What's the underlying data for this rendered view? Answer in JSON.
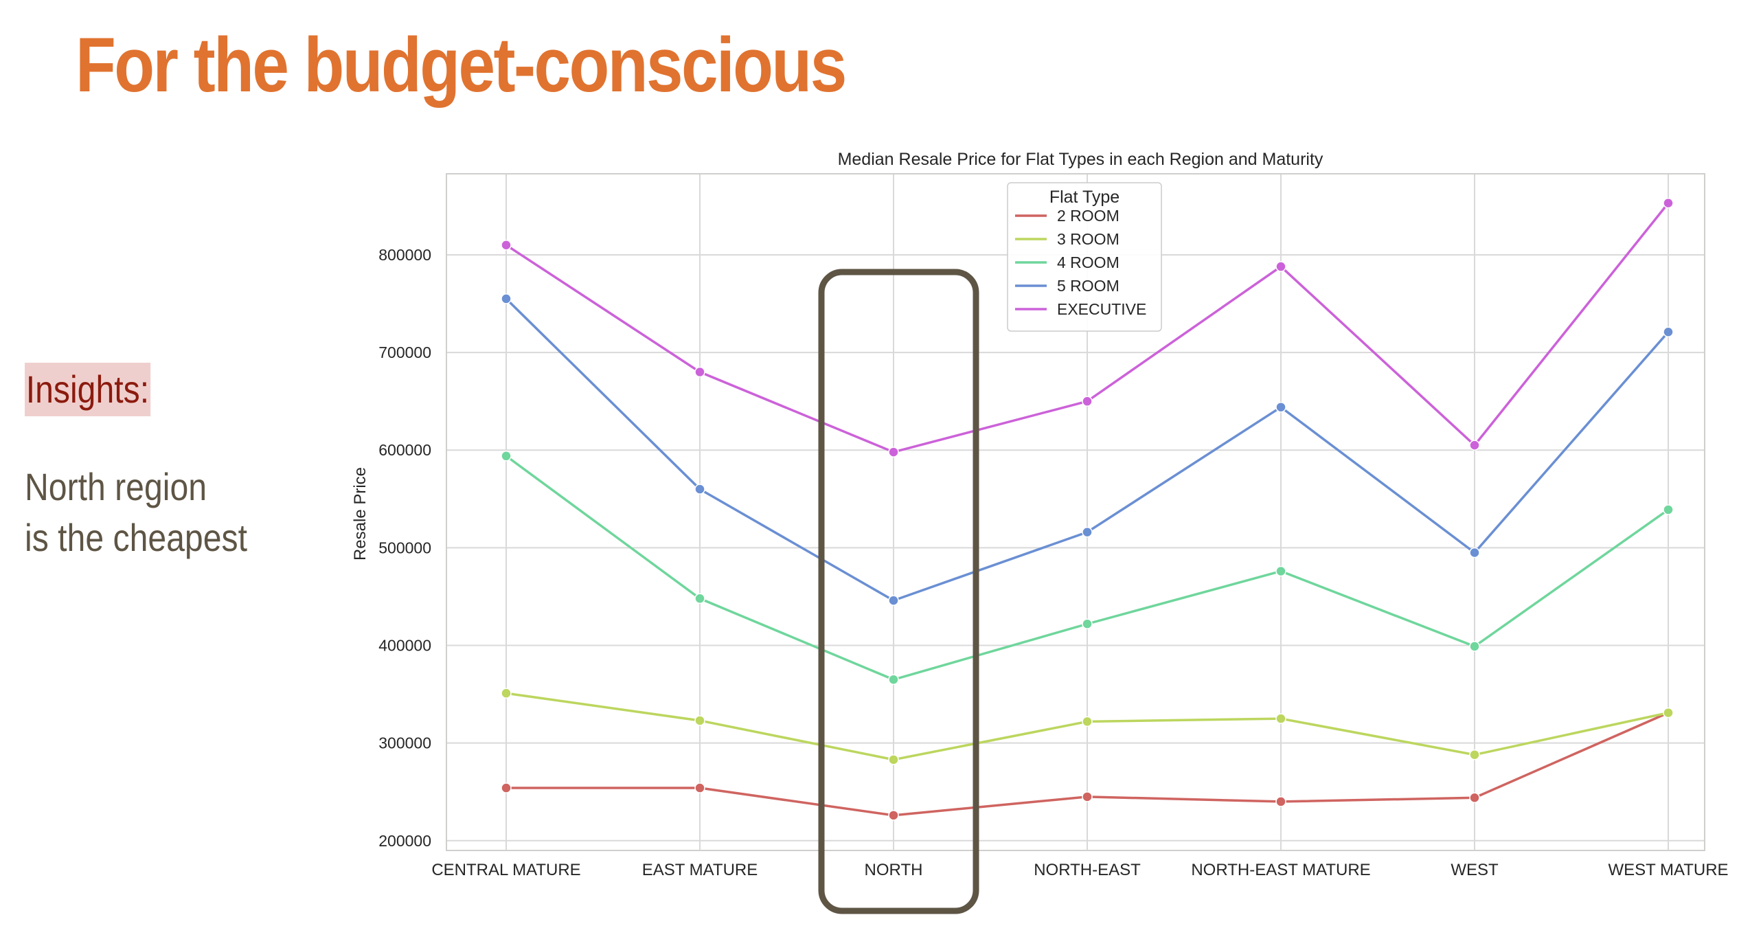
{
  "slide": {
    "title": "For the budget-conscious",
    "insights_label": "Insights:",
    "insights_lines": [
      "North region",
      "is the cheapest"
    ]
  },
  "colors": {
    "title": "#e07330",
    "insights_label_text": "#8b1a0e",
    "insights_label_bg": "#efcfcd",
    "insights_text": "#5e5545",
    "highlight_box": "#5e5545",
    "grid": "#d9d9d9"
  },
  "chart_data": {
    "type": "line",
    "title": "Median Resale Price for Flat Types in each Region and Maturity",
    "xlabel": "",
    "ylabel": "Resale Price",
    "categories": [
      "CENTRAL MATURE",
      "EAST MATURE",
      "NORTH",
      "NORTH-EAST",
      "NORTH-EAST MATURE",
      "WEST",
      "WEST MATURE"
    ],
    "yticks": [
      200000,
      300000,
      400000,
      500000,
      600000,
      700000,
      800000
    ],
    "ylim": [
      190000,
      883000
    ],
    "grid": true,
    "legend_title": "Flat Type",
    "legend_position": "top-center",
    "highlight_category": "NORTH",
    "series": [
      {
        "name": "2 ROOM",
        "color": "#cf6460",
        "values": [
          254000,
          254000,
          226000,
          245000,
          240000,
          244000,
          331000
        ]
      },
      {
        "name": "3 ROOM",
        "color": "#bcd65e",
        "values": [
          351000,
          323000,
          283000,
          322000,
          325000,
          288000,
          331000
        ]
      },
      {
        "name": "4 ROOM",
        "color": "#6fd69c",
        "values": [
          594000,
          448000,
          365000,
          422000,
          476000,
          399000,
          539000
        ]
      },
      {
        "name": "5 ROOM",
        "color": "#6a8fd3",
        "values": [
          755000,
          560000,
          446000,
          516000,
          644000,
          495000,
          721000
        ]
      },
      {
        "name": "EXECUTIVE",
        "color": "#cc62d9",
        "values": [
          810000,
          680000,
          598000,
          650000,
          788000,
          605000,
          853000
        ]
      }
    ]
  }
}
